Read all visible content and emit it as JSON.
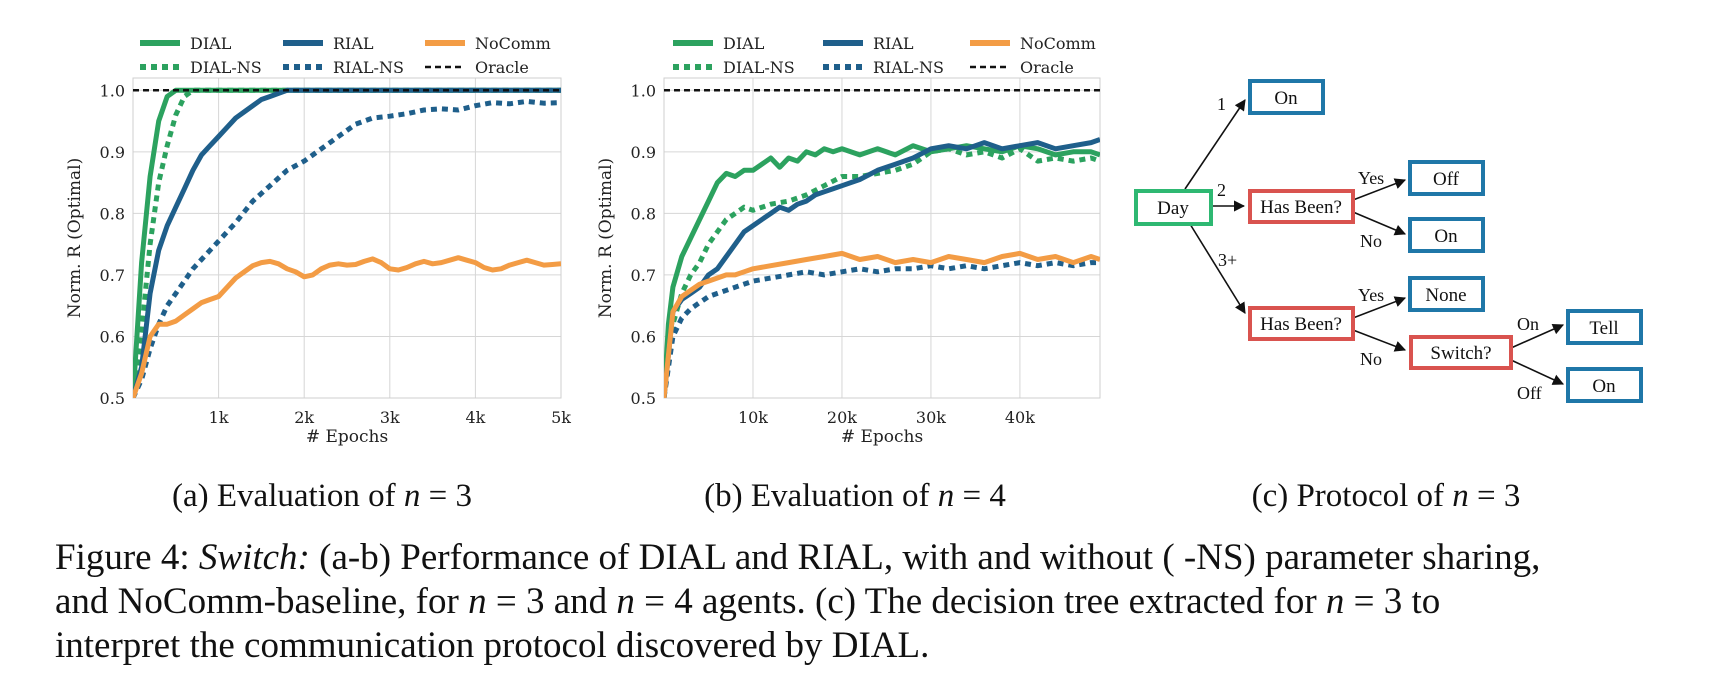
{
  "colors": {
    "dial": "#2ca25f",
    "rial": "#1f5f8b",
    "nocomm": "#f39c45",
    "oracle": "#111111",
    "node_green": "#2eb872",
    "node_red": "#d9534f",
    "node_blue": "#1f77a8"
  },
  "legend": {
    "row1": [
      "DIAL",
      "RIAL",
      "NoComm"
    ],
    "row2": [
      "DIAL-NS",
      "RIAL-NS",
      "Oracle"
    ]
  },
  "chart_data": [
    {
      "type": "line",
      "xlabel": "# Epochs",
      "ylabel": "Norm. R (Optimal)",
      "xlim": [
        0,
        5000
      ],
      "ylim": [
        0.5,
        1.02
      ],
      "xticks": [
        1000,
        2000,
        3000,
        4000,
        5000
      ],
      "xtick_labels": [
        "1k",
        "2k",
        "3k",
        "4k",
        "5k"
      ],
      "yticks": [
        0.5,
        0.6,
        0.7,
        0.8,
        0.9,
        1.0
      ],
      "ytick_labels": [
        "0.5",
        "0.6",
        "0.7",
        "0.8",
        "0.9",
        "1.0"
      ],
      "grid": true,
      "subcaption_prefix": "(a) Evaluation of ",
      "series": [
        {
          "name": "DIAL",
          "style": "solid",
          "color": "dial",
          "x": [
            0,
            100,
            200,
            300,
            400,
            500,
            600,
            800,
            1000,
            2000,
            3000,
            4000,
            5000
          ],
          "y": [
            0.5,
            0.72,
            0.86,
            0.95,
            0.99,
            1.0,
            1.0,
            1.0,
            1.0,
            1.0,
            1.0,
            1.0,
            1.0
          ]
        },
        {
          "name": "DIAL-NS",
          "style": "dotted",
          "color": "dial",
          "x": [
            0,
            100,
            200,
            300,
            400,
            500,
            600,
            700,
            800,
            1000,
            2000,
            3000,
            4000,
            5000
          ],
          "y": [
            0.5,
            0.61,
            0.75,
            0.85,
            0.91,
            0.96,
            0.99,
            1.0,
            1.0,
            1.0,
            1.0,
            1.0,
            1.0,
            1.0
          ]
        },
        {
          "name": "RIAL",
          "style": "solid",
          "color": "rial",
          "x": [
            0,
            100,
            200,
            300,
            400,
            500,
            600,
            700,
            800,
            900,
            1000,
            1100,
            1200,
            1300,
            1400,
            1500,
            1600,
            1700,
            1800,
            1900,
            2000,
            3000,
            4000,
            5000
          ],
          "y": [
            0.5,
            0.55,
            0.67,
            0.74,
            0.78,
            0.81,
            0.84,
            0.87,
            0.895,
            0.91,
            0.925,
            0.94,
            0.955,
            0.965,
            0.975,
            0.985,
            0.99,
            0.995,
            1.0,
            1.0,
            1.0,
            1.0,
            1.0,
            1.0
          ]
        },
        {
          "name": "RIAL-NS",
          "style": "dotted",
          "color": "rial",
          "x": [
            0,
            100,
            200,
            300,
            400,
            500,
            600,
            700,
            800,
            900,
            1000,
            1200,
            1400,
            1600,
            1800,
            2000,
            2200,
            2400,
            2600,
            2800,
            3000,
            3200,
            3400,
            3600,
            3800,
            4000,
            4200,
            4400,
            4600,
            4800,
            5000
          ],
          "y": [
            0.5,
            0.53,
            0.58,
            0.62,
            0.65,
            0.67,
            0.69,
            0.71,
            0.725,
            0.74,
            0.755,
            0.785,
            0.82,
            0.845,
            0.87,
            0.885,
            0.905,
            0.925,
            0.945,
            0.955,
            0.958,
            0.962,
            0.968,
            0.97,
            0.968,
            0.975,
            0.98,
            0.978,
            0.982,
            0.979,
            0.98
          ]
        },
        {
          "name": "NoComm",
          "style": "solid",
          "color": "nocomm",
          "x": [
            0,
            100,
            200,
            300,
            400,
            500,
            600,
            700,
            800,
            900,
            1000,
            1100,
            1200,
            1300,
            1400,
            1500,
            1600,
            1700,
            1800,
            1900,
            2000,
            2100,
            2200,
            2300,
            2400,
            2500,
            2600,
            2700,
            2800,
            2900,
            3000,
            3100,
            3200,
            3300,
            3400,
            3500,
            3600,
            3700,
            3800,
            3900,
            4000,
            4100,
            4200,
            4300,
            4400,
            4500,
            4600,
            4700,
            4800,
            4900,
            5000
          ],
          "y": [
            0.5,
            0.54,
            0.6,
            0.62,
            0.62,
            0.625,
            0.635,
            0.645,
            0.655,
            0.66,
            0.665,
            0.68,
            0.695,
            0.705,
            0.715,
            0.72,
            0.722,
            0.718,
            0.71,
            0.705,
            0.697,
            0.7,
            0.71,
            0.716,
            0.718,
            0.716,
            0.717,
            0.722,
            0.726,
            0.72,
            0.71,
            0.708,
            0.712,
            0.718,
            0.722,
            0.718,
            0.72,
            0.724,
            0.728,
            0.724,
            0.72,
            0.712,
            0.708,
            0.71,
            0.716,
            0.72,
            0.724,
            0.72,
            0.716,
            0.717,
            0.718
          ]
        },
        {
          "name": "Oracle",
          "style": "dashed",
          "color": "oracle",
          "x": [
            0,
            5000
          ],
          "y": [
            1.0,
            1.0
          ]
        }
      ]
    },
    {
      "type": "line",
      "xlabel": "# Epochs",
      "ylabel": "Norm. R (Optimal)",
      "xlim": [
        0,
        49000
      ],
      "ylim": [
        0.5,
        1.02
      ],
      "xticks": [
        10000,
        20000,
        30000,
        40000
      ],
      "xtick_labels": [
        "10k",
        "20k",
        "30k",
        "40k"
      ],
      "yticks": [
        0.5,
        0.6,
        0.7,
        0.8,
        0.9,
        1.0
      ],
      "ytick_labels": [
        "0.5",
        "0.6",
        "0.7",
        "0.8",
        "0.9",
        "1.0"
      ],
      "grid": true,
      "subcaption_prefix": "(b) Evaluation of ",
      "series": [
        {
          "name": "DIAL",
          "style": "solid",
          "color": "dial",
          "x": [
            0,
            500,
            1000,
            2000,
            3000,
            4000,
            5000,
            6000,
            7000,
            8000,
            9000,
            10000,
            11000,
            12000,
            13000,
            14000,
            15000,
            16000,
            17000,
            18000,
            19000,
            20000,
            22000,
            24000,
            26000,
            28000,
            30000,
            32000,
            34000,
            36000,
            38000,
            40000,
            42000,
            44000,
            46000,
            48000,
            49000
          ],
          "y": [
            0.5,
            0.62,
            0.68,
            0.73,
            0.76,
            0.79,
            0.82,
            0.85,
            0.865,
            0.86,
            0.87,
            0.87,
            0.88,
            0.89,
            0.875,
            0.89,
            0.885,
            0.9,
            0.895,
            0.905,
            0.9,
            0.905,
            0.895,
            0.905,
            0.895,
            0.91,
            0.9,
            0.905,
            0.91,
            0.905,
            0.9,
            0.91,
            0.905,
            0.895,
            0.9,
            0.9,
            0.895
          ]
        },
        {
          "name": "DIAL-NS",
          "style": "dotted",
          "color": "dial",
          "x": [
            0,
            1000,
            2000,
            3000,
            4000,
            5000,
            6000,
            7000,
            8000,
            9000,
            10000,
            12000,
            14000,
            16000,
            18000,
            20000,
            22000,
            24000,
            26000,
            28000,
            30000,
            32000,
            34000,
            36000,
            38000,
            40000,
            42000,
            44000,
            46000,
            48000,
            49000
          ],
          "y": [
            0.5,
            0.62,
            0.67,
            0.7,
            0.72,
            0.75,
            0.77,
            0.79,
            0.8,
            0.81,
            0.805,
            0.815,
            0.82,
            0.83,
            0.845,
            0.86,
            0.86,
            0.865,
            0.87,
            0.88,
            0.9,
            0.905,
            0.895,
            0.9,
            0.89,
            0.905,
            0.885,
            0.89,
            0.885,
            0.89,
            0.885
          ]
        },
        {
          "name": "RIAL",
          "style": "solid",
          "color": "rial",
          "x": [
            0,
            1000,
            2000,
            3000,
            4000,
            5000,
            6000,
            7000,
            8000,
            9000,
            10000,
            11000,
            12000,
            13000,
            14000,
            15000,
            16000,
            17000,
            18000,
            19000,
            20000,
            22000,
            24000,
            26000,
            28000,
            30000,
            32000,
            34000,
            36000,
            38000,
            40000,
            42000,
            44000,
            46000,
            48000,
            49000
          ],
          "y": [
            0.5,
            0.64,
            0.66,
            0.67,
            0.68,
            0.7,
            0.71,
            0.73,
            0.75,
            0.77,
            0.78,
            0.79,
            0.8,
            0.81,
            0.805,
            0.815,
            0.82,
            0.83,
            0.835,
            0.84,
            0.845,
            0.855,
            0.87,
            0.88,
            0.89,
            0.905,
            0.91,
            0.905,
            0.915,
            0.905,
            0.91,
            0.915,
            0.905,
            0.91,
            0.915,
            0.92
          ]
        },
        {
          "name": "RIAL-NS",
          "style": "dotted",
          "color": "rial",
          "x": [
            0,
            1000,
            2000,
            3000,
            4000,
            5000,
            6000,
            7000,
            8000,
            10000,
            12000,
            14000,
            16000,
            18000,
            20000,
            22000,
            24000,
            26000,
            28000,
            30000,
            32000,
            34000,
            36000,
            38000,
            40000,
            42000,
            44000,
            46000,
            48000,
            49000
          ],
          "y": [
            0.5,
            0.6,
            0.63,
            0.645,
            0.655,
            0.665,
            0.67,
            0.675,
            0.68,
            0.69,
            0.695,
            0.7,
            0.705,
            0.7,
            0.705,
            0.71,
            0.705,
            0.71,
            0.71,
            0.715,
            0.71,
            0.715,
            0.71,
            0.715,
            0.72,
            0.715,
            0.72,
            0.715,
            0.72,
            0.72
          ]
        },
        {
          "name": "NoComm",
          "style": "solid",
          "color": "nocomm",
          "x": [
            0,
            1000,
            2000,
            3000,
            4000,
            5000,
            6000,
            7000,
            8000,
            9000,
            10000,
            12000,
            14000,
            16000,
            18000,
            20000,
            22000,
            24000,
            26000,
            28000,
            30000,
            32000,
            34000,
            36000,
            38000,
            40000,
            42000,
            44000,
            46000,
            48000,
            49000
          ],
          "y": [
            0.5,
            0.64,
            0.665,
            0.675,
            0.685,
            0.69,
            0.695,
            0.7,
            0.7,
            0.705,
            0.71,
            0.715,
            0.72,
            0.725,
            0.73,
            0.735,
            0.725,
            0.73,
            0.72,
            0.725,
            0.72,
            0.73,
            0.725,
            0.72,
            0.73,
            0.735,
            0.725,
            0.73,
            0.72,
            0.73,
            0.725
          ]
        },
        {
          "name": "Oracle",
          "style": "dashed",
          "color": "oracle",
          "x": [
            0,
            49000
          ],
          "y": [
            1.0,
            1.0
          ]
        }
      ]
    }
  ],
  "protocol_tree": {
    "nodes": {
      "day": "Day",
      "on_top": "On",
      "has_been_1": "Has Been?",
      "off": "Off",
      "on_mid": "On",
      "has_been_2": "Has Been?",
      "none": "None",
      "switch": "Switch?",
      "tell": "Tell",
      "on_bottom": "On"
    },
    "edges": {
      "day_1": "1",
      "day_2": "2",
      "day_3": "3+",
      "hb1_yes": "Yes",
      "hb1_no": "No",
      "hb2_yes": "Yes",
      "hb2_no": "No",
      "sw_on": "On",
      "sw_off": "Off"
    },
    "subcaption_prefix": "(c) Protocol of "
  },
  "math": {
    "n_var": "n",
    "eq3": " = 3",
    "eq4": " = 4"
  },
  "caption": {
    "label": "Figure 4: ",
    "title": "Switch:",
    "line1_rest": " (a-b) Performance of DIAL and RIAL, with and without ( -NS) parameter sharing,",
    "line2_a": "and NoComm-baseline, for ",
    "line2_b": " = 3 and ",
    "line2_c": " = 4 agents.  (c) The decision tree extracted for ",
    "line2_d": " = 3 to",
    "line3": "interpret the communication protocol discovered by DIAL."
  }
}
